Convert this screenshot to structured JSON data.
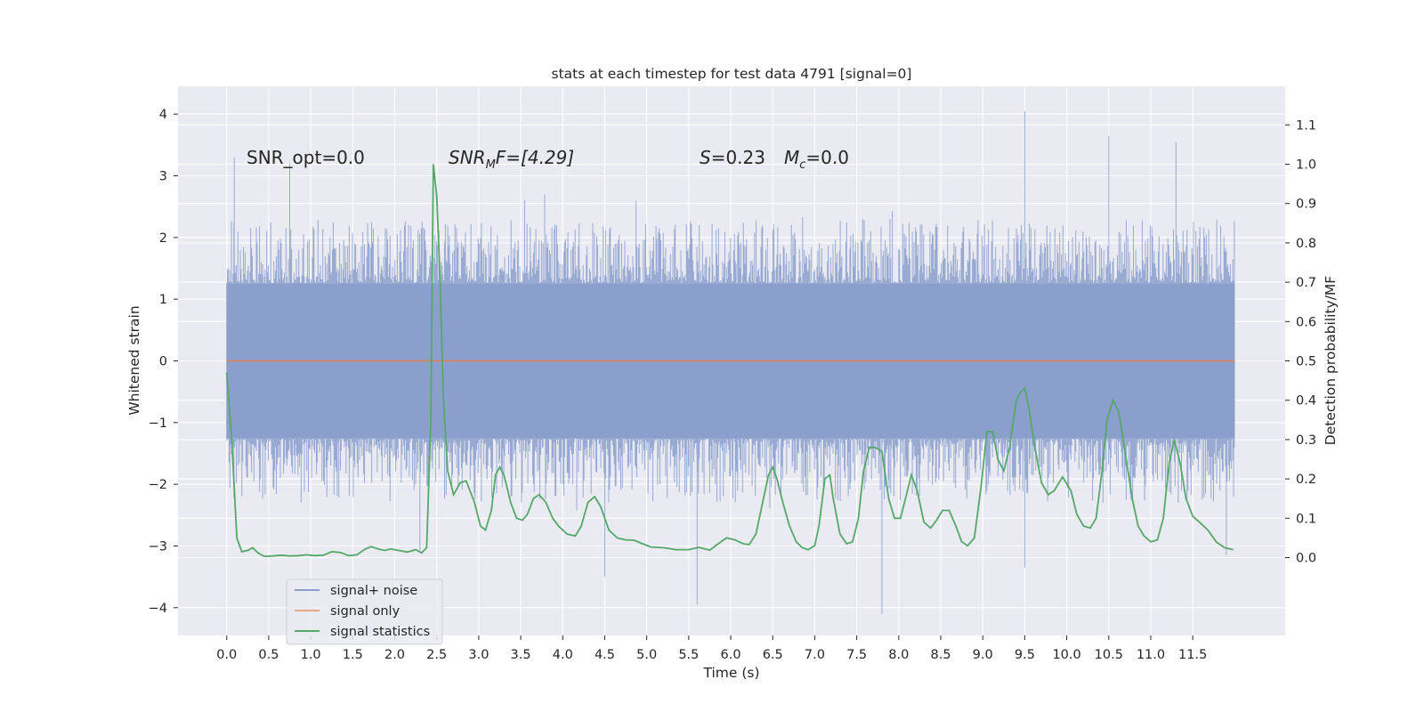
{
  "chart_data": {
    "type": "line",
    "title": "stats at each timestep for test data 4791 [signal=0]",
    "xlabel": "Time (s)",
    "ylabel_left": "Whitened strain",
    "ylabel_right": "Detection probability/MF",
    "xlim": [
      -0.58,
      12.6
    ],
    "ylim_left": [
      -4.45,
      4.45
    ],
    "ylim_right": [
      -0.198,
      1.198
    ],
    "x_ticks": [
      "0.0",
      "0.5",
      "1.0",
      "1.5",
      "2.0",
      "2.5",
      "3.0",
      "3.5",
      "4.0",
      "4.5",
      "5.0",
      "5.5",
      "6.0",
      "6.5",
      "7.0",
      "7.5",
      "8.0",
      "8.5",
      "9.0",
      "9.5",
      "10.0",
      "10.5",
      "11.0",
      "11.5"
    ],
    "y_ticks_left": [
      "4",
      "3",
      "2",
      "1",
      "0",
      "−1",
      "−2",
      "−3",
      "−4"
    ],
    "y_ticks_right": [
      "1.1",
      "1.0",
      "0.9",
      "0.8",
      "0.7",
      "0.6",
      "0.5",
      "0.4",
      "0.3",
      "0.2",
      "0.1",
      "0.0"
    ],
    "annotations": {
      "snr_opt": "SNR_opt=0.0",
      "snr_mf_label": "SNR",
      "snr_mf_sub": "M",
      "snr_mf_rest": "F=[4.29]",
      "s_label": "S",
      "s_value": "=0.23",
      "mc_label": "M",
      "mc_sub": "c",
      "mc_value": "=0.0"
    },
    "legend": {
      "position": "lower-left",
      "entries": [
        {
          "label": "signal+ noise",
          "color": "#8a9fcb"
        },
        {
          "label": "signal only",
          "color": "#e8a58c"
        },
        {
          "label": "signal statistics",
          "color": "#55a868"
        }
      ]
    },
    "colors": {
      "background": "#eaeaf2",
      "grid": "#ffffff",
      "noise": "#8a9fcb",
      "signal": "#dd8452",
      "stats": "#55a868"
    },
    "series": [
      {
        "name": "signal+ noise",
        "axis": "left",
        "x_range": [
          0.0,
          12.0
        ],
        "band_min_approx": -2.3,
        "band_max_approx": 2.3,
        "peaks": [
          {
            "x": 0.09,
            "y": 3.3
          },
          {
            "x": 0.75,
            "y": 3.2
          },
          {
            "x": 2.3,
            "y": -3.1
          },
          {
            "x": 4.5,
            "y": -3.5
          },
          {
            "x": 5.6,
            "y": -3.95
          },
          {
            "x": 7.8,
            "y": -4.1
          },
          {
            "x": 9.5,
            "y": 4.05
          },
          {
            "x": 9.5,
            "y": -3.35
          },
          {
            "x": 10.5,
            "y": 3.65
          },
          {
            "x": 11.3,
            "y": 3.55
          },
          {
            "x": 11.9,
            "y": -3.15
          }
        ]
      },
      {
        "name": "signal only",
        "axis": "left",
        "x": [
          0.0,
          12.0
        ],
        "y": [
          0.0,
          0.0
        ]
      },
      {
        "name": "signal statistics",
        "axis": "right",
        "points": [
          [
            0.0,
            0.47
          ],
          [
            0.06,
            0.3
          ],
          [
            0.12,
            0.05
          ],
          [
            0.18,
            0.015
          ],
          [
            0.25,
            0.018
          ],
          [
            0.31,
            0.025
          ],
          [
            0.37,
            0.012
          ],
          [
            0.45,
            0.003
          ],
          [
            0.55,
            0.004
          ],
          [
            0.65,
            0.006
          ],
          [
            0.75,
            0.004
          ],
          [
            0.85,
            0.005
          ],
          [
            0.95,
            0.007
          ],
          [
            1.05,
            0.005
          ],
          [
            1.15,
            0.006
          ],
          [
            1.25,
            0.015
          ],
          [
            1.35,
            0.013
          ],
          [
            1.45,
            0.005
          ],
          [
            1.55,
            0.007
          ],
          [
            1.65,
            0.022
          ],
          [
            1.72,
            0.028
          ],
          [
            1.8,
            0.022
          ],
          [
            1.88,
            0.018
          ],
          [
            1.95,
            0.022
          ],
          [
            2.05,
            0.018
          ],
          [
            2.15,
            0.014
          ],
          [
            2.25,
            0.02
          ],
          [
            2.32,
            0.012
          ],
          [
            2.38,
            0.025
          ],
          [
            2.43,
            0.35
          ],
          [
            2.46,
            1.0
          ],
          [
            2.5,
            0.92
          ],
          [
            2.54,
            0.7
          ],
          [
            2.58,
            0.4
          ],
          [
            2.63,
            0.22
          ],
          [
            2.7,
            0.16
          ],
          [
            2.78,
            0.19
          ],
          [
            2.85,
            0.195
          ],
          [
            2.95,
            0.14
          ],
          [
            3.02,
            0.08
          ],
          [
            3.08,
            0.07
          ],
          [
            3.15,
            0.12
          ],
          [
            3.2,
            0.21
          ],
          [
            3.25,
            0.23
          ],
          [
            3.3,
            0.21
          ],
          [
            3.38,
            0.14
          ],
          [
            3.45,
            0.1
          ],
          [
            3.52,
            0.095
          ],
          [
            3.58,
            0.11
          ],
          [
            3.65,
            0.15
          ],
          [
            3.72,
            0.16
          ],
          [
            3.8,
            0.14
          ],
          [
            3.88,
            0.1
          ],
          [
            3.95,
            0.08
          ],
          [
            4.05,
            0.06
          ],
          [
            4.15,
            0.055
          ],
          [
            4.22,
            0.08
          ],
          [
            4.3,
            0.14
          ],
          [
            4.38,
            0.155
          ],
          [
            4.45,
            0.13
          ],
          [
            4.55,
            0.07
          ],
          [
            4.65,
            0.05
          ],
          [
            4.75,
            0.045
          ],
          [
            4.85,
            0.044
          ],
          [
            4.95,
            0.035
          ],
          [
            5.05,
            0.027
          ],
          [
            5.2,
            0.025
          ],
          [
            5.35,
            0.02
          ],
          [
            5.5,
            0.02
          ],
          [
            5.62,
            0.026
          ],
          [
            5.75,
            0.019
          ],
          [
            5.85,
            0.035
          ],
          [
            5.95,
            0.05
          ],
          [
            6.05,
            0.045
          ],
          [
            6.15,
            0.035
          ],
          [
            6.22,
            0.033
          ],
          [
            6.3,
            0.06
          ],
          [
            6.38,
            0.14
          ],
          [
            6.45,
            0.21
          ],
          [
            6.5,
            0.23
          ],
          [
            6.55,
            0.2
          ],
          [
            6.62,
            0.14
          ],
          [
            6.7,
            0.08
          ],
          [
            6.78,
            0.04
          ],
          [
            6.85,
            0.025
          ],
          [
            6.92,
            0.02
          ],
          [
            7.0,
            0.03
          ],
          [
            7.05,
            0.08
          ],
          [
            7.12,
            0.2
          ],
          [
            7.18,
            0.21
          ],
          [
            7.22,
            0.15
          ],
          [
            7.3,
            0.06
          ],
          [
            7.38,
            0.035
          ],
          [
            7.45,
            0.04
          ],
          [
            7.52,
            0.1
          ],
          [
            7.58,
            0.22
          ],
          [
            7.65,
            0.28
          ],
          [
            7.72,
            0.28
          ],
          [
            7.8,
            0.27
          ],
          [
            7.88,
            0.15
          ],
          [
            7.95,
            0.1
          ],
          [
            8.02,
            0.1
          ],
          [
            8.08,
            0.15
          ],
          [
            8.15,
            0.21
          ],
          [
            8.22,
            0.17
          ],
          [
            8.3,
            0.09
          ],
          [
            8.38,
            0.075
          ],
          [
            8.45,
            0.095
          ],
          [
            8.52,
            0.12
          ],
          [
            8.6,
            0.12
          ],
          [
            8.68,
            0.08
          ],
          [
            8.75,
            0.04
          ],
          [
            8.82,
            0.03
          ],
          [
            8.9,
            0.05
          ],
          [
            8.98,
            0.18
          ],
          [
            9.05,
            0.32
          ],
          [
            9.12,
            0.32
          ],
          [
            9.18,
            0.25
          ],
          [
            9.25,
            0.22
          ],
          [
            9.32,
            0.28
          ],
          [
            9.4,
            0.4
          ],
          [
            9.45,
            0.42
          ],
          [
            9.5,
            0.43
          ],
          [
            9.55,
            0.38
          ],
          [
            9.62,
            0.28
          ],
          [
            9.7,
            0.19
          ],
          [
            9.78,
            0.16
          ],
          [
            9.85,
            0.17
          ],
          [
            9.95,
            0.205
          ],
          [
            10.05,
            0.17
          ],
          [
            10.12,
            0.11
          ],
          [
            10.2,
            0.08
          ],
          [
            10.28,
            0.075
          ],
          [
            10.35,
            0.1
          ],
          [
            10.42,
            0.22
          ],
          [
            10.48,
            0.35
          ],
          [
            10.55,
            0.4
          ],
          [
            10.62,
            0.37
          ],
          [
            10.7,
            0.26
          ],
          [
            10.78,
            0.15
          ],
          [
            10.85,
            0.08
          ],
          [
            10.92,
            0.055
          ],
          [
            11.0,
            0.04
          ],
          [
            11.08,
            0.045
          ],
          [
            11.15,
            0.1
          ],
          [
            11.22,
            0.24
          ],
          [
            11.28,
            0.3
          ],
          [
            11.35,
            0.24
          ],
          [
            11.42,
            0.15
          ],
          [
            11.5,
            0.105
          ],
          [
            11.58,
            0.09
          ],
          [
            11.68,
            0.07
          ],
          [
            11.78,
            0.04
          ],
          [
            11.88,
            0.025
          ],
          [
            11.98,
            0.02
          ]
        ]
      }
    ]
  }
}
